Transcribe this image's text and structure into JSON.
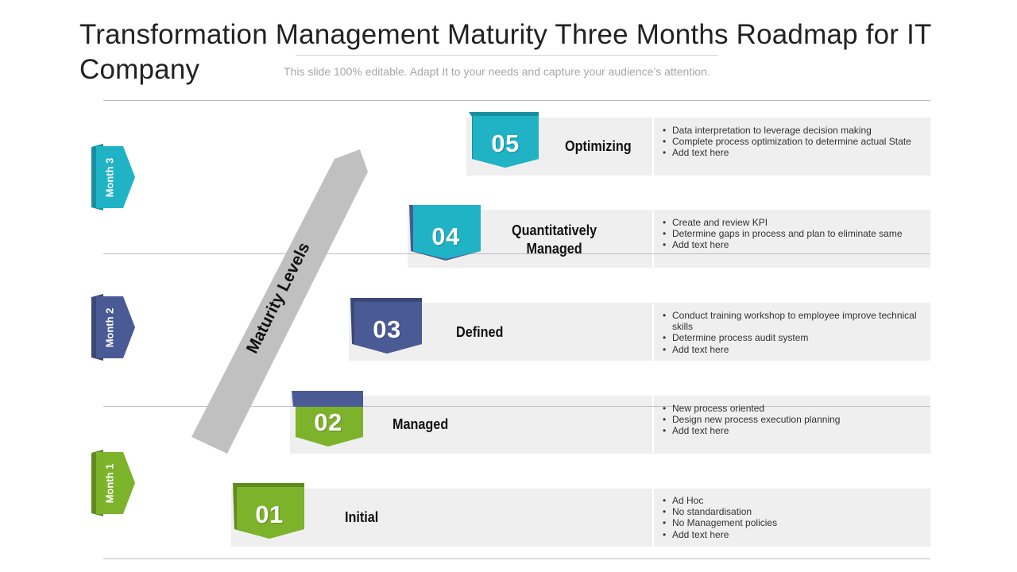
{
  "title": "Transformation  Management Maturity Three Months Roadmap for IT Company",
  "subtitle": "This slide 100% editable. Adapt  It to your needs and capture your audience’s attention.",
  "colors": {
    "teal": "#1fb3c5",
    "navy": "#4a5a94",
    "green": "#7db32b",
    "gray_arrow": "#c0c0c0",
    "panel": "#efefef"
  },
  "months": [
    {
      "label": "Month 3",
      "color": "#1fb3c5"
    },
    {
      "label": "Month 2",
      "color": "#4a5a94"
    },
    {
      "label": "Month 1",
      "color": "#7db32b"
    }
  ],
  "maturity_label": "Maturity Levels",
  "levels": [
    {
      "number": "05",
      "name": "Optimizing",
      "color": "#1fb3c5",
      "bullets": [
        "Data interpretation to leverage decision making",
        "Complete process optimization to determine actual State",
        "Add text here"
      ]
    },
    {
      "number": "04",
      "name": "Quantitatively Managed",
      "color": "#1fb3c5",
      "bullets": [
        "Create and review KPI",
        "Determine gaps in process and plan to eliminate same",
        "Add text here"
      ]
    },
    {
      "number": "03",
      "name": "Defined",
      "color": "#4a5a94",
      "bullets": [
        "Conduct training workshop to  employee improve technical skills",
        "Determine process audit system",
        "Add text here"
      ]
    },
    {
      "number": "02",
      "name": "Managed",
      "color": "#7db32b",
      "bullets": [
        "New process oriented",
        "Design new process execution planning",
        "Add text here"
      ]
    },
    {
      "number": "01",
      "name": "Initial",
      "color": "#7db32b",
      "bullets": [
        "Ad Hoc",
        "No standardisation",
        "No Management policies",
        "Add text here"
      ]
    }
  ]
}
